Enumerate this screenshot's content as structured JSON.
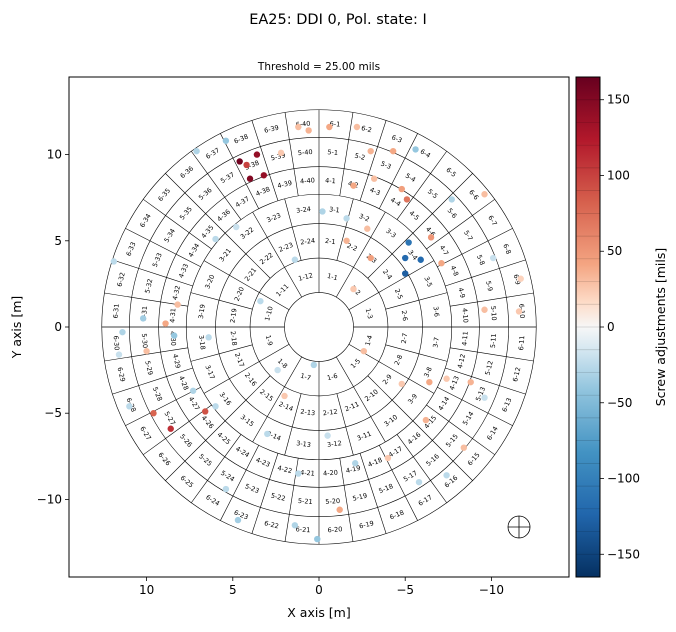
{
  "chart_data": {
    "type": "scatter",
    "suptitle": "EA25: DDI 0, Pol. state: I",
    "title": "Threshold = 25.00 mils",
    "xlabel": "X axis [m]",
    "ylabel": "Y axis [m]",
    "xlim": [
      14.5,
      -14.5
    ],
    "ylim": [
      -14.5,
      14.5
    ],
    "xticks": [
      10,
      5,
      0,
      -5,
      -10
    ],
    "xtick_labels": [
      "10",
      "5",
      "0",
      "−5",
      "−10"
    ],
    "yticks": [
      10,
      5,
      0,
      -5,
      -10
    ],
    "ytick_labels": [
      "10",
      "5",
      "0",
      "−5",
      "−10"
    ],
    "colorbar": {
      "label": "Screw adjustments [mils]",
      "vmin": -165,
      "vmax": 165,
      "ticks": [
        150,
        100,
        50,
        0,
        -50,
        -100,
        -150
      ],
      "tick_labels": [
        "150",
        "100",
        "50",
        "0",
        "−50",
        "−100",
        "−150"
      ],
      "colormap": "RdBu_r"
    },
    "rings": [
      {
        "ring": 1,
        "r_inner": 2.0,
        "r_outer": 4.0,
        "panels": 12
      },
      {
        "ring": 2,
        "r_inner": 4.0,
        "r_outer": 6.0,
        "panels": 24
      },
      {
        "ring": 3,
        "r_inner": 6.0,
        "r_outer": 7.7,
        "panels": 24
      },
      {
        "ring": 4,
        "r_inner": 7.7,
        "r_outer": 9.3,
        "panels": 40
      },
      {
        "ring": 5,
        "r_inner": 9.3,
        "r_outer": 11.0,
        "panels": 40
      },
      {
        "ring": 6,
        "r_inner": 11.0,
        "r_outer": 12.6,
        "panels": 40
      }
    ],
    "points": [
      {
        "x": 4.6,
        "y": 9.6,
        "value": 160
      },
      {
        "x": 3.6,
        "y": 10.0,
        "value": 140
      },
      {
        "x": 3.2,
        "y": 8.8,
        "value": 140
      },
      {
        "x": 4.0,
        "y": 8.6,
        "value": 150
      },
      {
        "x": 4.2,
        "y": 9.4,
        "value": 100
      },
      {
        "x": 6.6,
        "y": -4.9,
        "value": 90
      },
      {
        "x": 8.6,
        "y": -5.9,
        "value": 110
      },
      {
        "x": 9.6,
        "y": -5.0,
        "value": 80
      },
      {
        "x": -5.0,
        "y": 4.0,
        "value": -120
      },
      {
        "x": -5.0,
        "y": 3.1,
        "value": -130
      },
      {
        "x": -5.2,
        "y": 4.9,
        "value": -110
      },
      {
        "x": -5.9,
        "y": 3.9,
        "value": -120
      },
      {
        "x": -5.1,
        "y": 7.4,
        "value": 70
      },
      {
        "x": -4.8,
        "y": 8.0,
        "value": 45
      },
      {
        "x": -6.5,
        "y": 5.2,
        "value": 50
      },
      {
        "x": -3.0,
        "y": 4.0,
        "value": 45
      },
      {
        "x": -2.0,
        "y": 8.2,
        "value": 40
      },
      {
        "x": -3.0,
        "y": 10.2,
        "value": 35
      },
      {
        "x": -3.2,
        "y": 8.6,
        "value": 30
      },
      {
        "x": -0.6,
        "y": 11.6,
        "value": 40
      },
      {
        "x": 0.6,
        "y": 11.4,
        "value": 35
      },
      {
        "x": 1.2,
        "y": 11.6,
        "value": 30
      },
      {
        "x": 2.2,
        "y": 10.1,
        "value": 25
      },
      {
        "x": -2.2,
        "y": 11.6,
        "value": 30
      },
      {
        "x": -4.3,
        "y": 10.2,
        "value": 40
      },
      {
        "x": -5.6,
        "y": 10.3,
        "value": -40
      },
      {
        "x": -7.7,
        "y": 7.4,
        "value": -30
      },
      {
        "x": -9.6,
        "y": 7.7,
        "value": 30
      },
      {
        "x": -10.1,
        "y": 4.0,
        "value": -20
      },
      {
        "x": -11.7,
        "y": 2.8,
        "value": 20
      },
      {
        "x": -11.6,
        "y": 0.9,
        "value": 25
      },
      {
        "x": -9.6,
        "y": 1.0,
        "value": 30
      },
      {
        "x": -7.1,
        "y": 3.7,
        "value": 40
      },
      {
        "x": -1.6,
        "y": 5.0,
        "value": 35
      },
      {
        "x": -2.0,
        "y": 2.2,
        "value": 25
      },
      {
        "x": 1.4,
        "y": 3.9,
        "value": -25
      },
      {
        "x": -0.2,
        "y": 6.7,
        "value": -30
      },
      {
        "x": -1.6,
        "y": 6.3,
        "value": -25
      },
      {
        "x": -2.8,
        "y": 5.7,
        "value": 30
      },
      {
        "x": 5.4,
        "y": 10.8,
        "value": -40
      },
      {
        "x": 7.1,
        "y": 10.2,
        "value": -30
      },
      {
        "x": 6.0,
        "y": 5.1,
        "value": -25
      },
      {
        "x": 4.8,
        "y": 5.8,
        "value": -20
      },
      {
        "x": 11.9,
        "y": 3.8,
        "value": -25
      },
      {
        "x": 11.4,
        "y": -0.3,
        "value": -30
      },
      {
        "x": 10.2,
        "y": 0.5,
        "value": -35
      },
      {
        "x": 8.2,
        "y": 1.3,
        "value": 30
      },
      {
        "x": 8.4,
        "y": -0.5,
        "value": -40
      },
      {
        "x": 8.9,
        "y": 0.2,
        "value": 40
      },
      {
        "x": 10.0,
        "y": -1.4,
        "value": 30
      },
      {
        "x": 11.6,
        "y": -1.6,
        "value": -20
      },
      {
        "x": 11.0,
        "y": -4.6,
        "value": -25
      },
      {
        "x": 6.4,
        "y": -0.6,
        "value": -25
      },
      {
        "x": 7.3,
        "y": -3.7,
        "value": -30
      },
      {
        "x": 6.0,
        "y": -4.6,
        "value": -25
      },
      {
        "x": 2.0,
        "y": -4.0,
        "value": 25
      },
      {
        "x": 0.3,
        "y": -2.2,
        "value": -30
      },
      {
        "x": -2.6,
        "y": -1.4,
        "value": 30
      },
      {
        "x": -4.8,
        "y": -3.3,
        "value": 25
      },
      {
        "x": -6.2,
        "y": -5.4,
        "value": 35
      },
      {
        "x": -6.4,
        "y": -3.2,
        "value": 40
      },
      {
        "x": -7.4,
        "y": -3.0,
        "value": 25
      },
      {
        "x": -8.8,
        "y": -3.2,
        "value": 35
      },
      {
        "x": -9.6,
        "y": -4.1,
        "value": -20
      },
      {
        "x": -8.4,
        "y": -7.0,
        "value": 30
      },
      {
        "x": -7.4,
        "y": -8.6,
        "value": -25
      },
      {
        "x": -5.8,
        "y": -9.0,
        "value": -25
      },
      {
        "x": -1.2,
        "y": -10.6,
        "value": 40
      },
      {
        "x": 0.1,
        "y": -12.3,
        "value": -40
      },
      {
        "x": 1.4,
        "y": -11.5,
        "value": -30
      },
      {
        "x": 4.7,
        "y": -11.2,
        "value": -35
      },
      {
        "x": 5.4,
        "y": -9.4,
        "value": -25
      },
      {
        "x": 1.2,
        "y": -8.5,
        "value": -25
      },
      {
        "x": -2.1,
        "y": -7.9,
        "value": -30
      },
      {
        "x": -0.5,
        "y": -6.3,
        "value": -20
      },
      {
        "x": -4.0,
        "y": -7.6,
        "value": 25
      },
      {
        "x": 3.0,
        "y": -6.2,
        "value": -25
      },
      {
        "x": 2.4,
        "y": -2.5,
        "value": -20
      },
      {
        "x": 3.4,
        "y": 1.5,
        "value": -25
      }
    ]
  }
}
